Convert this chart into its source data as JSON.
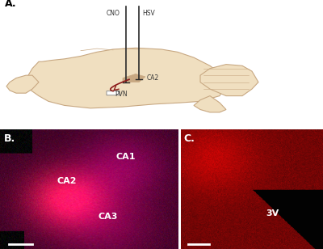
{
  "panel_labels": [
    "A.",
    "B.",
    "C."
  ],
  "panel_label_fontsize": 9,
  "panel_label_color": "#000000",
  "background_color": "#ffffff",
  "brain_fill_color": "#f0dfc0",
  "brain_edge_color": "#c8a882",
  "needle_color": "#2a2a2a",
  "cno_label": "CNO",
  "hsv_label": "HSV",
  "ca2_label": "CA2",
  "pvn_label": "PVN",
  "ca1_label": "CA1",
  "ca2_hist_label": "CA2",
  "ca3_label": "CA3",
  "3v_label": "3V",
  "arrow_color": "#8b1a1a",
  "label_fontsize": 7,
  "scale_bar_color": "#ffffff",
  "figsize": [
    4.0,
    3.08
  ],
  "dpi": 100
}
